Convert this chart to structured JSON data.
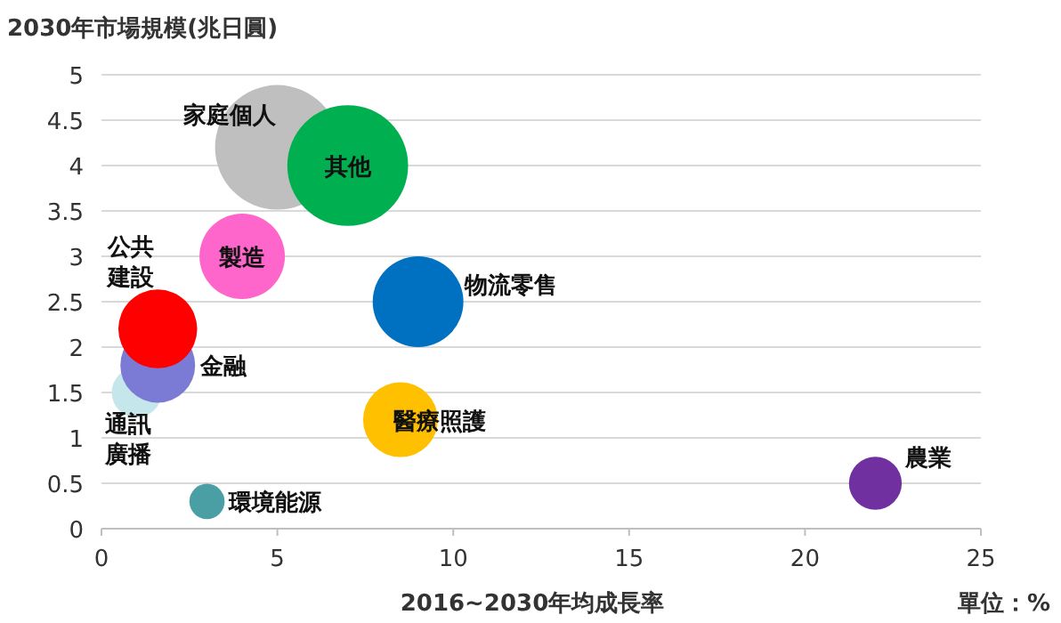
{
  "chart_data": {
    "type": "bubble",
    "xlabel": "2016~2030年均成長率",
    "ylabel": "2030年市場規模(兆日圓)",
    "annotations": [
      "單位：%"
    ],
    "xlim": [
      0,
      25
    ],
    "xticks": [
      0,
      5,
      10,
      15,
      20,
      25
    ],
    "ylim": [
      0,
      5
    ],
    "yticks": [
      0,
      0.5,
      1,
      1.5,
      2,
      2.5,
      3,
      3.5,
      4,
      4.5,
      5
    ],
    "grid": "y",
    "series": [
      {
        "name": "家庭個人",
        "color": "#bfbfbf",
        "x": [
          5
        ],
        "values": [
          4.2
        ],
        "sizes": [
          1
        ]
      },
      {
        "name": "其他",
        "color": "#00b050",
        "x": [
          7
        ],
        "values": [
          4.0
        ],
        "sizes": [
          0.94
        ]
      },
      {
        "name": "製造",
        "color": "#ff66cc",
        "x": [
          4
        ],
        "values": [
          3.0
        ],
        "sizes": [
          0.47
        ]
      },
      {
        "name": "物流零售",
        "color": "#0070c0",
        "x": [
          9
        ],
        "values": [
          2.5
        ],
        "sizes": [
          0.53
        ]
      },
      {
        "name": "通訊廣播",
        "color": "#c5e6ea",
        "x": [
          1
        ],
        "values": [
          1.5
        ],
        "sizes": [
          0.16
        ]
      },
      {
        "name": "金融",
        "color": "#7b7bd6",
        "x": [
          1.6
        ],
        "values": [
          1.8
        ],
        "sizes": [
          0.36
        ]
      },
      {
        "name": "公共建設",
        "color": "#ff0000",
        "x": [
          1.6
        ],
        "values": [
          2.2
        ],
        "sizes": [
          0.4
        ]
      },
      {
        "name": "醫療照護",
        "color": "#ffc000",
        "x": [
          8.5
        ],
        "values": [
          1.2
        ],
        "sizes": [
          0.36
        ]
      },
      {
        "name": "環境能源",
        "color": "#4a9fa5",
        "x": [
          3
        ],
        "values": [
          0.3
        ],
        "sizes": [
          0.08
        ]
      },
      {
        "name": "農業",
        "color": "#7030a0",
        "x": [
          22
        ],
        "values": [
          0.5
        ],
        "sizes": [
          0.18
        ]
      }
    ]
  }
}
